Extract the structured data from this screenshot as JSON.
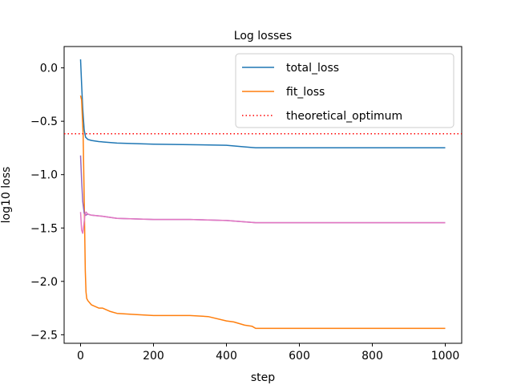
{
  "chart_data": {
    "type": "line",
    "title": "Log losses",
    "xlabel": "step",
    "ylabel": "log10 loss",
    "xlim": [
      -45,
      1045
    ],
    "ylim": [
      -2.58,
      0.2
    ],
    "xticks": [
      0,
      200,
      400,
      600,
      800,
      1000
    ],
    "xtick_labels": [
      "0",
      "200",
      "400",
      "600",
      "800",
      "1000"
    ],
    "yticks": [
      0.0,
      -0.5,
      -1.0,
      -1.5,
      -2.0,
      -2.5
    ],
    "ytick_labels": [
      "0.0",
      "−0.5",
      "−1.0",
      "−1.5",
      "−2.0",
      "−2.5"
    ],
    "grid": false,
    "legend_position": "upper-right",
    "legend": [
      "total_loss",
      "fit_loss",
      "theoretical_optimum"
    ],
    "series": [
      {
        "name": "total_loss",
        "color": "#1f77b4",
        "x": [
          0,
          3,
          6,
          10,
          14,
          20,
          30,
          50,
          100,
          200,
          300,
          400,
          450,
          480,
          500,
          600,
          800,
          1000
        ],
        "y": [
          0.08,
          -0.15,
          -0.38,
          -0.58,
          -0.65,
          -0.67,
          -0.68,
          -0.69,
          -0.705,
          -0.715,
          -0.72,
          -0.725,
          -0.74,
          -0.748,
          -0.748,
          -0.748,
          -0.748,
          -0.748
        ]
      },
      {
        "name": "fit_loss",
        "color": "#ff7f0e",
        "x": [
          0,
          3,
          7,
          10,
          13,
          15,
          17,
          20,
          30,
          50,
          60,
          80,
          100,
          150,
          200,
          300,
          350,
          400,
          420,
          450,
          470,
          480,
          500,
          600,
          800,
          1000
        ],
        "y": [
          -0.26,
          -0.3,
          -0.62,
          -1.2,
          -1.9,
          -2.1,
          -2.16,
          -2.18,
          -2.22,
          -2.25,
          -2.25,
          -2.28,
          -2.3,
          -2.31,
          -2.32,
          -2.32,
          -2.33,
          -2.37,
          -2.38,
          -2.41,
          -2.42,
          -2.44,
          -2.44,
          -2.44,
          -2.44,
          -2.44
        ]
      },
      {
        "name": "",
        "color": "#9467bd",
        "x": [
          0,
          3,
          6,
          10,
          14,
          20,
          30,
          60,
          100,
          200,
          300,
          400,
          480,
          600,
          800,
          1000
        ],
        "y": [
          -0.82,
          -1.05,
          -1.25,
          -1.36,
          -1.38,
          -1.37,
          -1.38,
          -1.39,
          -1.41,
          -1.42,
          -1.42,
          -1.43,
          -1.45,
          -1.45,
          -1.45,
          -1.45
        ]
      },
      {
        "name": "",
        "color": "#e377c2",
        "x": [
          0,
          3,
          6,
          9,
          12,
          15,
          20,
          30,
          60,
          100,
          200,
          300,
          400,
          480,
          600,
          800,
          1000
        ],
        "y": [
          -1.35,
          -1.52,
          -1.55,
          -1.47,
          -1.38,
          -1.35,
          -1.37,
          -1.38,
          -1.39,
          -1.41,
          -1.42,
          -1.42,
          -1.43,
          -1.45,
          -1.45,
          -1.45,
          -1.45
        ]
      }
    ],
    "reference_lines": [
      {
        "name": "theoretical_optimum",
        "y": -0.617,
        "color": "#ff0000",
        "style": "dotted"
      }
    ]
  }
}
